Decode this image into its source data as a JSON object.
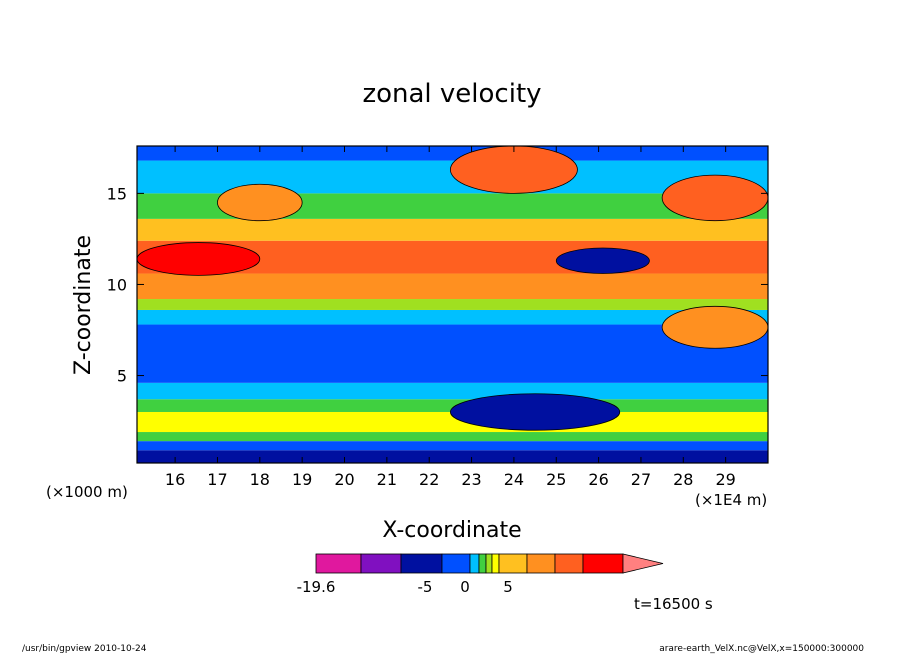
{
  "chart_data": {
    "type": "heatmap",
    "title": "zonal velocity",
    "xlabel": "X-coordinate",
    "ylabel": "Z-coordinate",
    "x_unit_left": "(×1000 m)",
    "x_unit_right": "(×1E4 m)",
    "x_ticks": [
      "16",
      "17",
      "18",
      "19",
      "20",
      "21",
      "22",
      "23",
      "24",
      "25",
      "26",
      "27",
      "28",
      "29"
    ],
    "x_tick_values": [
      16,
      17,
      18,
      19,
      20,
      21,
      22,
      23,
      24,
      25,
      26,
      27,
      28,
      29
    ],
    "y_ticks": [
      "5",
      "10",
      "15"
    ],
    "y_tick_values": [
      5,
      10,
      15
    ],
    "xlim": [
      15.1,
      30
    ],
    "ylim": [
      0.2,
      17.6
    ],
    "grid": false,
    "colorbar": {
      "colors": [
        "#e0189e",
        "#8010c0",
        "#0010a0",
        "#0050ff",
        "#00c0ff",
        "#40d040",
        "#a0e020",
        "#ffff00",
        "#ffc020",
        "#ff9020",
        "#ff6020",
        "#ff0000",
        "#ff8080"
      ],
      "labels": [
        "-19.6",
        "-5",
        "0",
        "5"
      ],
      "label_values": [
        -19.6,
        -5,
        0,
        5
      ]
    },
    "bands": [
      {
        "z": [
          0.2,
          0.9
        ],
        "value": -12
      },
      {
        "z": [
          0.9,
          1.4
        ],
        "value": -6
      },
      {
        "z": [
          1.4,
          1.9
        ],
        "value": -1.5
      },
      {
        "z": [
          1.9,
          3.0
        ],
        "value": -0.5
      },
      {
        "z": [
          3.0,
          3.7
        ],
        "value": -2
      },
      {
        "z": [
          3.7,
          4.6
        ],
        "value": -4
      },
      {
        "z": [
          4.6,
          7.8
        ],
        "value": -8
      },
      {
        "z": [
          7.8,
          8.6
        ],
        "value": -4
      },
      {
        "z": [
          8.6,
          9.2
        ],
        "value": -1
      },
      {
        "z": [
          9.2,
          10.6
        ],
        "value": 2
      },
      {
        "z": [
          10.6,
          12.4
        ],
        "value": 4
      },
      {
        "z": [
          12.4,
          13.6
        ],
        "value": 1
      },
      {
        "z": [
          13.6,
          15.0
        ],
        "value": -1.5
      },
      {
        "z": [
          15.0,
          16.8
        ],
        "value": -5
      },
      {
        "z": [
          16.8,
          17.6
        ],
        "value": -8
      }
    ],
    "features": [
      {
        "x": [
          22.5,
          26.5
        ],
        "z": [
          2.0,
          4.0
        ],
        "value": -12
      },
      {
        "x": [
          25.0,
          27.2
        ],
        "z": [
          10.6,
          12.0
        ],
        "value": -12
      },
      {
        "x": [
          17.0,
          19.0
        ],
        "z": [
          13.5,
          15.5
        ],
        "value": 2
      },
      {
        "x": [
          27.5,
          30.0
        ],
        "z": [
          13.5,
          16.0
        ],
        "value": 4
      },
      {
        "x": [
          22.5,
          25.5
        ],
        "z": [
          15.0,
          17.6
        ],
        "value": 4
      },
      {
        "x": [
          27.5,
          30.0
        ],
        "z": [
          6.5,
          8.8
        ],
        "value": 3
      },
      {
        "x": [
          15.1,
          18.0
        ],
        "z": [
          10.5,
          12.3
        ],
        "value": 6
      }
    ]
  },
  "footer": {
    "time_label": "t=16500 s",
    "program": "/usr/bin/gpview   2010-10-24",
    "source": "arare-earth_VelX.nc@VelX,x=150000:300000"
  }
}
